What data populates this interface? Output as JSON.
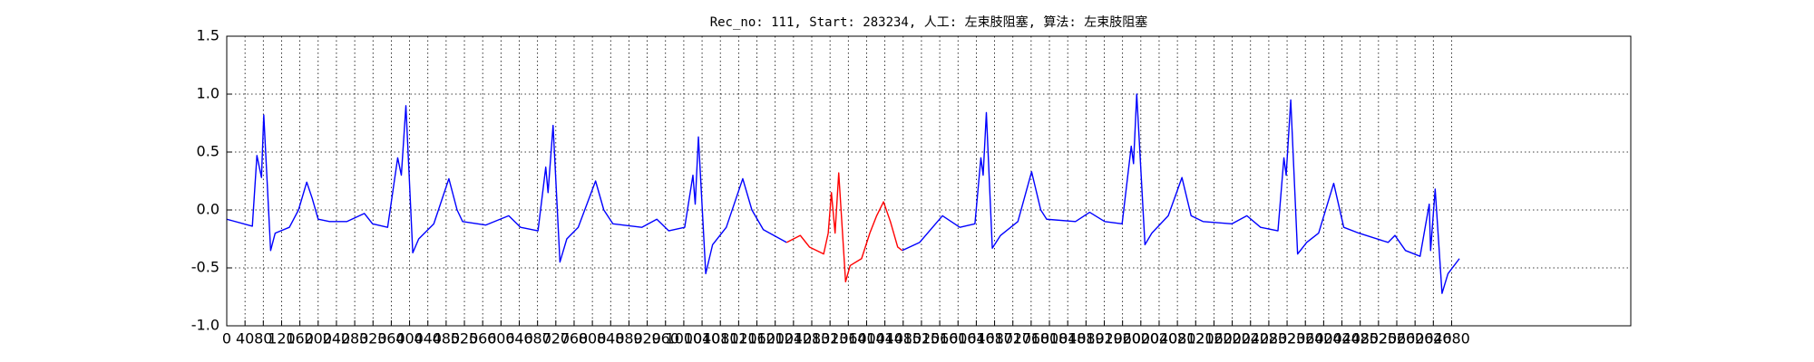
{
  "chart_data": {
    "type": "line",
    "title": "Rec_no: 111, Start: 283234, 人工: 左束肢阻塞, 算法: 左束肢阻塞",
    "xlim": [
      0,
      3072
    ],
    "xticks": [
      0,
      40,
      80,
      120,
      160,
      200,
      240,
      280,
      320,
      360,
      400,
      440,
      480,
      520,
      560,
      600,
      640,
      680,
      720,
      760,
      800,
      840,
      880,
      920,
      960,
      1000,
      1040,
      1080,
      1120,
      1160,
      1200,
      1240,
      1280,
      1320,
      1360,
      1400,
      1440,
      1480,
      1520,
      1560,
      1600,
      1640,
      1680,
      1720,
      1760,
      1800,
      1840,
      1880,
      1920,
      1960,
      2000,
      2040,
      2080,
      2120,
      2160,
      2200,
      2240,
      2280,
      2320,
      2360,
      2400,
      2440,
      2480,
      2520,
      2560,
      2600,
      2640,
      2680
    ],
    "ylim": [
      -1,
      1.5
    ],
    "yticks": [
      {
        "value": -1,
        "label": "-1.0"
      },
      -0.5,
      {
        "value": 0,
        "label": "0.0"
      },
      0.5,
      {
        "value": 1,
        "label": "1.0"
      },
      1.5
    ],
    "grid": true,
    "series": [
      {
        "color": "#0000ff",
        "x": [
          0,
          56,
          66,
          76,
          81,
          96,
          106,
          137,
          157,
          175,
          187,
          200,
          225,
          263,
          301,
          319,
          352,
          374,
          382,
          392,
          407,
          420,
          453,
          486,
          504,
          516,
          567,
          617,
          643,
          681,
          698,
          703,
          714,
          729,
          744,
          769,
          807,
          825,
          845,
          908,
          941,
          967,
          1002,
          1020,
          1025,
          1032,
          1048,
          1063,
          1093,
          1129,
          1149,
          1174,
          1225
        ],
        "values": [
          -0.08,
          -0.14,
          0.47,
          0.28,
          0.82,
          -0.35,
          -0.2,
          -0.15,
          0.0,
          0.24,
          0.1,
          -0.08,
          -0.1,
          -0.1,
          -0.03,
          -0.12,
          -0.15,
          0.45,
          0.3,
          0.9,
          -0.37,
          -0.25,
          -0.12,
          0.27,
          0.0,
          -0.1,
          -0.13,
          -0.05,
          -0.15,
          -0.18,
          0.37,
          0.15,
          0.73,
          -0.45,
          -0.25,
          -0.15,
          0.25,
          0.0,
          -0.12,
          -0.15,
          -0.08,
          -0.18,
          -0.15,
          0.3,
          0.05,
          0.63,
          -0.55,
          -0.3,
          -0.15,
          0.27,
          0.0,
          -0.17,
          -0.28
        ]
      },
      {
        "color": "#ff0000",
        "x": [
          1225,
          1255,
          1275,
          1306,
          1316,
          1323,
          1331,
          1339,
          1354,
          1364,
          1389,
          1407,
          1422,
          1437,
          1452,
          1468,
          1478
        ],
        "values": [
          -0.28,
          -0.22,
          -0.32,
          -0.38,
          -0.2,
          0.15,
          -0.2,
          0.32,
          -0.62,
          -0.48,
          -0.42,
          -0.2,
          -0.05,
          0.07,
          -0.1,
          -0.32,
          -0.35
        ]
      },
      {
        "color": "#0000ff",
        "x": [
          1478,
          1516,
          1566,
          1604,
          1637,
          1650,
          1655,
          1662,
          1675,
          1693,
          1731,
          1761,
          1781,
          1794,
          1857,
          1888,
          1921,
          1959,
          1979,
          1984,
          1991,
          2009,
          2024,
          2060,
          2090,
          2110,
          2136,
          2199,
          2232,
          2262,
          2300,
          2313,
          2318,
          2328,
          2343,
          2363,
          2389,
          2422,
          2444,
          2477,
          2541,
          2556,
          2579,
          2611,
          2631,
          2634,
          2644,
          2659,
          2672,
          2697
        ],
        "values": [
          -0.35,
          -0.28,
          -0.05,
          -0.15,
          -0.12,
          0.45,
          0.3,
          0.84,
          -0.33,
          -0.22,
          -0.1,
          0.33,
          0.0,
          -0.08,
          -0.1,
          -0.02,
          -0.1,
          -0.12,
          0.55,
          0.4,
          1.0,
          -0.3,
          -0.2,
          -0.05,
          0.28,
          -0.05,
          -0.1,
          -0.12,
          -0.05,
          -0.15,
          -0.18,
          0.45,
          0.3,
          0.95,
          -0.38,
          -0.28,
          -0.2,
          0.23,
          -0.15,
          -0.2,
          -0.28,
          -0.22,
          -0.35,
          -0.4,
          0.05,
          -0.35,
          0.18,
          -0.72,
          -0.55,
          -0.42
        ]
      }
    ]
  }
}
